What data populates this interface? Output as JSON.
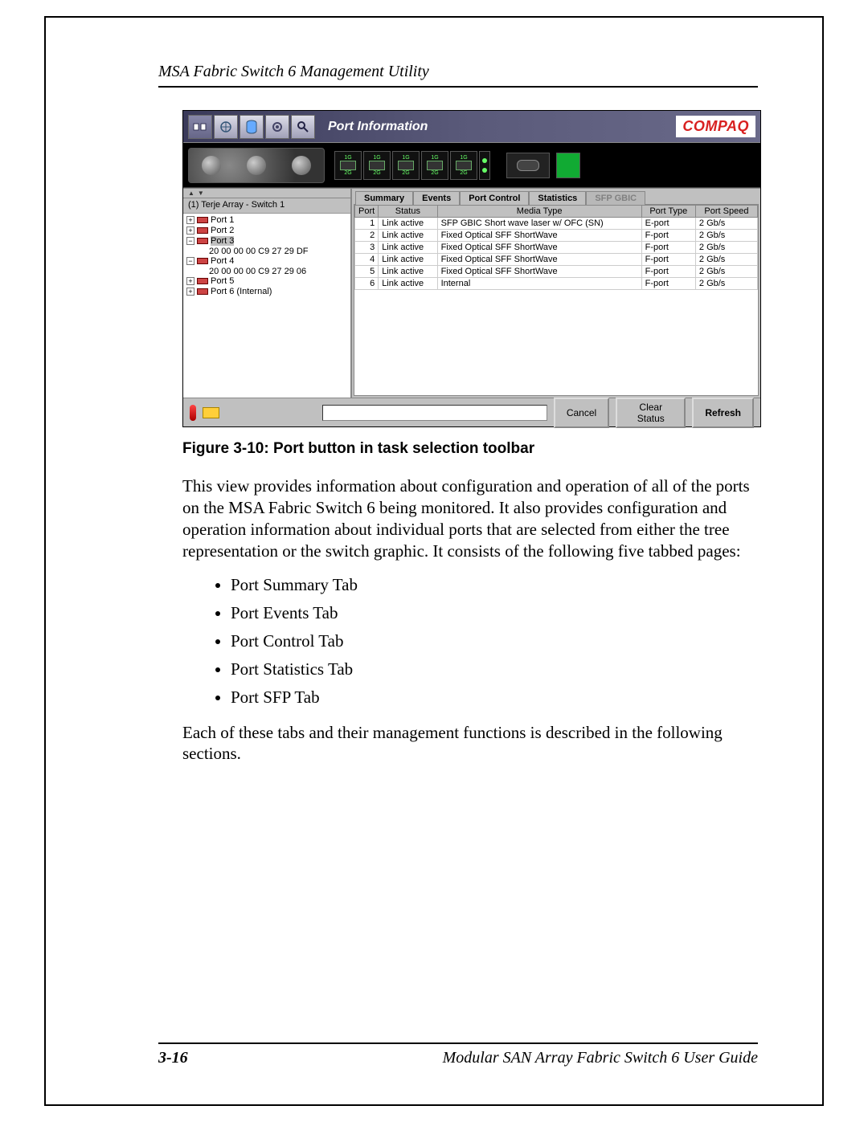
{
  "document": {
    "header": "MSA Fabric Switch 6 Management Utility",
    "figure_caption": "Figure 3-10:  Port button in task selection toolbar",
    "paragraph": "This view provides information about configuration and operation of all of the ports on the MSA Fabric Switch 6 being monitored. It also provides configuration and operation information about individual ports that are selected from either the tree representation or the switch graphic. It consists of the following five tabbed pages:",
    "bullets": [
      "Port Summary Tab",
      "Port Events Tab",
      "Port Control Tab",
      "Port Statistics Tab",
      "Port SFP Tab"
    ],
    "closing": "Each of these tabs and their management functions is described in the following sections.",
    "page_number": "3-16",
    "footer_right": "Modular SAN Array Fabric Switch 6 User Guide"
  },
  "app": {
    "brand": "COMPAQ",
    "toolbar_title": "Port Information",
    "toolbar_icons": [
      "ports-icon",
      "fabric-icon",
      "db-icon",
      "gear-icon",
      "search-icon"
    ],
    "port_slots": {
      "count": 5,
      "top_label": "1G",
      "bottom_label": "2G"
    },
    "tree": {
      "root": "(1) Terje Array - Switch 1",
      "items": [
        {
          "label": "Port 1",
          "expand": "+",
          "children": []
        },
        {
          "label": "Port 2",
          "expand": "+",
          "children": []
        },
        {
          "label": "Port 3",
          "expand": "−",
          "selected": true,
          "children": [
            "20 00 00 00 C9 27 29 DF"
          ]
        },
        {
          "label": "Port 4",
          "expand": "−",
          "children": [
            "20 00 00 00 C9 27 29 06"
          ]
        },
        {
          "label": "Port 5",
          "expand": "+",
          "children": []
        },
        {
          "label": "Port 6 (Internal)",
          "expand": "+",
          "children": []
        }
      ]
    },
    "tabs": [
      {
        "label": "Summary",
        "active": true
      },
      {
        "label": "Events"
      },
      {
        "label": "Port Control"
      },
      {
        "label": "Statistics"
      },
      {
        "label": "SFP GBIC",
        "disabled": true
      }
    ],
    "table": {
      "columns": [
        "Port",
        "Status",
        "Media Type",
        "Port Type",
        "Port Speed"
      ],
      "rows": [
        [
          "1",
          "Link active",
          "SFP GBIC Short wave laser w/ OFC (SN)",
          "E-port",
          "2 Gb/s"
        ],
        [
          "2",
          "Link active",
          "Fixed Optical SFF ShortWave",
          "F-port",
          "2 Gb/s"
        ],
        [
          "3",
          "Link active",
          "Fixed Optical SFF ShortWave",
          "F-port",
          "2 Gb/s"
        ],
        [
          "4",
          "Link active",
          "Fixed Optical SFF ShortWave",
          "F-port",
          "2 Gb/s"
        ],
        [
          "5",
          "Link active",
          "Fixed Optical SFF ShortWave",
          "F-port",
          "2 Gb/s"
        ],
        [
          "6",
          "Link active",
          "Internal",
          "F-port",
          "2 Gb/s"
        ]
      ]
    },
    "buttons": {
      "cancel": "Cancel",
      "clear": "Clear Status",
      "refresh": "Refresh"
    }
  },
  "colors": {
    "page_border": "#000000",
    "app_bg": "#c0c0c0",
    "brand": "#d82020",
    "led_green": "#66ff66"
  }
}
